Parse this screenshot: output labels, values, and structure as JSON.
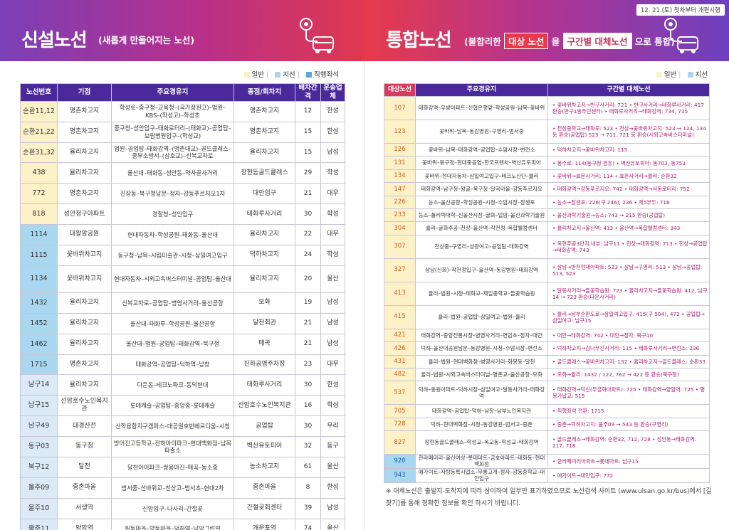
{
  "left_header": {
    "title": "신설노선",
    "subtitle": "(새롭게 만들어지는 노선)"
  },
  "right_header": {
    "title": "통합노선",
    "sub_pre": "(불합리한",
    "sub_box1": "대상 노선",
    "sub_mid": "을",
    "sub_box2": "구간별 대체노선",
    "sub_post": "으로 통합)",
    "date_badge": "12. 21.(토) 첫차부터 개편시행"
  },
  "left_legend": [
    "일반",
    "지선",
    "직행좌석"
  ],
  "right_legend": [
    "일반",
    "지선"
  ],
  "colors": {
    "general": "#fdf1c8",
    "branch": "#a9d7ef",
    "express": "#dce9f7",
    "header": "#4a2a9a",
    "accent": "#d63a5e"
  },
  "icons": [
    "location-pin-icon",
    "bus-icon"
  ],
  "new_routes": {
    "columns": [
      "노선번호",
      "기점",
      "주요경유지",
      "종점/회차지",
      "배차간격",
      "운송업체"
    ],
    "rows": [
      {
        "type": "general",
        "num": "순환11,12",
        "start": "명촌차고지",
        "via": "학성로–중구청–교육청–(국가정원고)–법원–KBS–(학성고)–학성초",
        "end": "명촌차고지",
        "interval": "12",
        "company": "한성"
      },
      {
        "type": "general",
        "num": "순환21,22",
        "start": "명촌차고지",
        "via": "중구청–성안입구–태화로터리–(태화교)–공업탑–보람병원입구–(학성교)",
        "end": "명촌차고지",
        "interval": "15",
        "company": "한성"
      },
      {
        "type": "general",
        "num": "순환31,32",
        "start": "율리차고지",
        "via": "법원–공업탑–태화강역–(명촌대교)–골드클래스–중부소방서–(삼호교)–신복교차로",
        "end": "율리차고지",
        "interval": "15",
        "company": "남성"
      },
      {
        "type": "general",
        "num": "438",
        "start": "율리차고지",
        "via": "울산대–태화동–성안동–약사골사거리",
        "end": "장현동골드클래스",
        "interval": "29",
        "company": "학성"
      },
      {
        "type": "general",
        "num": "772",
        "start": "명촌차고지",
        "via": "진장동–북구청남문–정자–강동푸르지오1차",
        "end": "대안입구",
        "interval": "21",
        "company": "대우"
      },
      {
        "type": "general",
        "num": "818",
        "start": "성안청구아파트",
        "via": "경찰청–성안입구",
        "end": "태화루사거리",
        "interval": "30",
        "company": "학성"
      },
      {
        "type": "branch",
        "num": "1114",
        "start": "대왕암공원",
        "via": "현대자동차–학성공원–태화동–울산대",
        "end": "율리차고지",
        "interval": "22",
        "company": "대우"
      },
      {
        "type": "branch",
        "num": "1115",
        "start": "꽃바위차고지",
        "via": "동구청–남목–시립미술관–시청–삼일여고입구",
        "end": "덕하차고지",
        "interval": "24",
        "company": "학성"
      },
      {
        "type": "branch",
        "num": "1134",
        "start": "꽃바위차고지",
        "via": "현대자동차–시외고속버스터미널–공업탑–울산대",
        "end": "율리차고지",
        "interval": "20",
        "company": "울산"
      },
      {
        "type": "branch",
        "num": "1432",
        "start": "율리차고지",
        "via": "신복교차로–공업탑–병영사거리–울산공항",
        "end": "모화",
        "interval": "19",
        "company": "남성"
      },
      {
        "type": "branch",
        "num": "1452",
        "start": "율리차고지",
        "via": "울산대–태화루–학성공원–울산공항",
        "end": "달천회관",
        "interval": "21",
        "company": "남성"
      },
      {
        "type": "branch",
        "num": "1462",
        "start": "율리차고지",
        "via": "울산대–법원–공업탑–태화강역–북구청",
        "end": "매곡",
        "interval": "21",
        "company": "남성"
      },
      {
        "type": "branch",
        "num": "1715",
        "start": "명촌차고지",
        "via": "태화강역–공업탑–덕하역–남창",
        "end": "진하공영주차장",
        "interval": "23",
        "company": "대우"
      },
      {
        "type": "express",
        "num": "남구14",
        "start": "율리차고지",
        "via": "다운동–테크노파크–동덕현대",
        "end": "태화루사거리",
        "interval": "30",
        "company": "한성"
      },
      {
        "type": "express",
        "num": "남구15",
        "start": "선암호수노인복지관",
        "via": "롯데캐슬–공업탑–중앙중–롯데캐슬",
        "end": "선암호수노인복지관",
        "interval": "16",
        "company": "학성"
      },
      {
        "type": "express",
        "num": "남구49",
        "start": "대경산전",
        "via": "산학융합지구캠퍼스–대공원호반베르디움–시청",
        "end": "공업탑",
        "interval": "30",
        "company": "우리"
      },
      {
        "type": "express",
        "num": "동구03",
        "start": "동구청",
        "via": "방어진고등학교–전하아이파크–현대백화점–남목파출소",
        "end": "벽산유토피아",
        "interval": "32",
        "company": "동구"
      },
      {
        "type": "express",
        "num": "북구12",
        "start": "달천",
        "via": "달천아이파크–쌍용아진–매곡–농소중",
        "end": "농소차고지",
        "interval": "61",
        "company": "울산"
      },
      {
        "type": "express",
        "num": "울주09",
        "start": "중촌마을",
        "via": "범서중–선바위교–천상고–범서초–현대2차",
        "end": "중촌마을",
        "interval": "8",
        "company": "한성"
      },
      {
        "type": "express",
        "num": "울주10",
        "start": "서생역",
        "via": "신암입구–나사리–간절곶",
        "end": "간절곶회센터",
        "interval": "39",
        "company": "남성"
      },
      {
        "type": "express",
        "num": "울주11",
        "start": "양암역",
        "via": "원동마을–양동마을–덕하역–남암그린빌",
        "end": "개운포역",
        "interval": "74",
        "company": "울산"
      }
    ]
  },
  "merged_routes": {
    "columns": [
      "대상노선",
      "주요경유지",
      "구간별 대체노선"
    ],
    "rows": [
      {
        "type": "general",
        "num": "107",
        "via": "태화강역–우방아파트–신협은행앞–학성공원–남목–꽃바위",
        "alt": "• 꽃바위차고지→반구사거리: 721 • 반구사거리→태화루사거리: 417 환승(반구1동주민센터) • 태화루사거리→태화강역: 734, 735"
      },
      {
        "type": "general",
        "num": "123",
        "via": "꽃바위–남목–동강병원–구영리–범서중",
        "alt": "• 천상중학교→태화루: 523 • 천상→꽃바위차고지: 523 → 124, 134 등 환승(공업탑) 523 → 711, 721 등 환승(시외고속버스터미널)"
      },
      {
        "type": "general",
        "num": "126",
        "via": "꽃바위–남목–태화강역–공업탑–수암시장–변전소",
        "alt": "• 덕하차고지→꽃바위차고지: 115"
      },
      {
        "type": "general",
        "num": "131",
        "via": "꽃바위–동구청–현대중공업–한국프랜차–벽산유토피아",
        "alt": "• 봉수로: 114(동구청 경유) • 벽산유토피아: 동703, 동753"
      },
      {
        "type": "general",
        "num": "134",
        "via": "꽃바위–현대자동차–삼일여고입구–테크노산단–율리",
        "alt": "• 꽃바위→효문사거리: 114 • 효문사거리→율리: 순환32"
      },
      {
        "type": "general",
        "num": "147",
        "via": "태화강역–남구청–왕굴–북구청–달곡마을–강동푸르지오",
        "alt": "• 태화강역→강동푸르지오: 742 • 태화강역→서동로터리: 752"
      },
      {
        "type": "general",
        "num": "226",
        "via": "농소–울산공항–학성공원–시청–수암시장–장생포",
        "alt": "• 농소→장생포: 226(구 246), 236 • 제5부두: 716"
      },
      {
        "type": "general",
        "num": "233",
        "via": "농소–폴리텍대학–신울산시장–굴화–입암–울산과학기술원",
        "alt": "• 울산과학기술원→농소: 743 → 215 환승(공업탑)"
      },
      {
        "type": "general",
        "num": "304",
        "via": "율리–굴화주공–천상–울산역–작천정–복합웰컴센터",
        "alt": "• 율리차고지→울산역: 413 • 울산역→복합웰컴센터: 343"
      },
      {
        "type": "general",
        "num": "307",
        "via": "천상중–구영리–성광여고–공업탑–태화강역",
        "alt": "• 옥현주공3단지 내부: 남구11 • 천상→태화강역: 713 • 천상→공업탑→태화강역: 743"
      },
      {
        "type": "general",
        "num": "327",
        "via": "삼남(신화)–작천정입구–울산역–동강병원–태화강역",
        "alt": "• 삼남→반천현대아파트: 523 • 삼남→구영리: 513 • 삼남→공업탑: 513, 523"
      },
      {
        "type": "general",
        "num": "413",
        "via": "율리–법원–시청–태화교–제일중학교–들꽃학습원",
        "alt": "• 달동사거리→들꽃학습원: 723 • 율리차고지→들꽃학습원: 412, 남구14 → 723 환승(다운사거리)"
      },
      {
        "type": "general",
        "num": "415",
        "via": "율리–법원–공업탑–삼일여고–법원–율리",
        "alt": "• 율리→남부순환도로→삼일여고입구: 415(구 504), 472 • 공업탑→삼일여고: 남구15"
      },
      {
        "type": "general",
        "num": "421",
        "via": "태화강역–중앙전통시장–병영사거리–연암초–정자–대안",
        "alt": "• 대안→태화강역: 742 • 대안→정자: 북구10"
      },
      {
        "type": "general",
        "num": "426",
        "via": "덕하–울산대공원남문–동강병원–시청–수암시장–변전소",
        "alt": "• 덕하차고지→감나무진사거리: 115 • 태화루사거리→변전소: 236"
      },
      {
        "type": "general",
        "num": "431",
        "via": "율리–법원–현대백화점–병영사거리–화봉동–달천",
        "alt": "• 골드클래스→꽃바위차고지: 132 • 율리차고지→골드클래스: 순환33"
      },
      {
        "type": "general",
        "num": "482",
        "via": "율리–법원–시외고속버스터미널–명촌교–울산공항–모화",
        "alt": "• 모화→율리: 1432 / 122, 762 → 422 등 환승(북구청)"
      },
      {
        "type": "general",
        "num": "537",
        "via": "덕하–동원아파트–덕하시장–삼일여고–달동사거리–태화강역",
        "alt": "• 태화강역→덕신(무궁화아파트): 725 • 태화강역→양암역: 725 • 명봉가납교: 515"
      },
      {
        "type": "general",
        "num": "705",
        "via": "태화강역–공업탑–덕하–남창–남부노인복지관",
        "alt": "• 직행좌석 전환: 1715"
      },
      {
        "type": "general",
        "num": "728",
        "via": "덕하–현대백화점–시청–동강병원–범서고–중촌",
        "alt": "• 중촌→덕하차고지: 울주09 → 543 등 환승(구영리)"
      },
      {
        "type": "general",
        "num": "827",
        "via": "장현동골드클래스–학성교–옥교동–학성교–태화강역",
        "alt": "• 골드클래스→태화강역: 순환32, 712, 728 • 성안동→태화강역: 217, 718"
      },
      {
        "type": "branch",
        "num": "920",
        "via": "한라페미리–울산여상–롯데마트–금호아파트–태화동–현대백화점",
        "alt": "• 한라페미리아파트→롯데마트: 남구15"
      },
      {
        "type": "branch",
        "num": "943",
        "via": "에가이트–자탕동록시업소–무룡고개–정자–강동중학교–대안입구",
        "alt": "• 에가이트→대안입구: 772"
      }
    ]
  },
  "footnote": "※ 대체노선은 출발지-도착지에 따라 상이하여 일부만 표기하였으므로 노선검색 사이트 (www.ulsan.go.kr/bus)에서 [길찾기]를 통해 정확한 정보를 확인 하시기 바랍니다."
}
